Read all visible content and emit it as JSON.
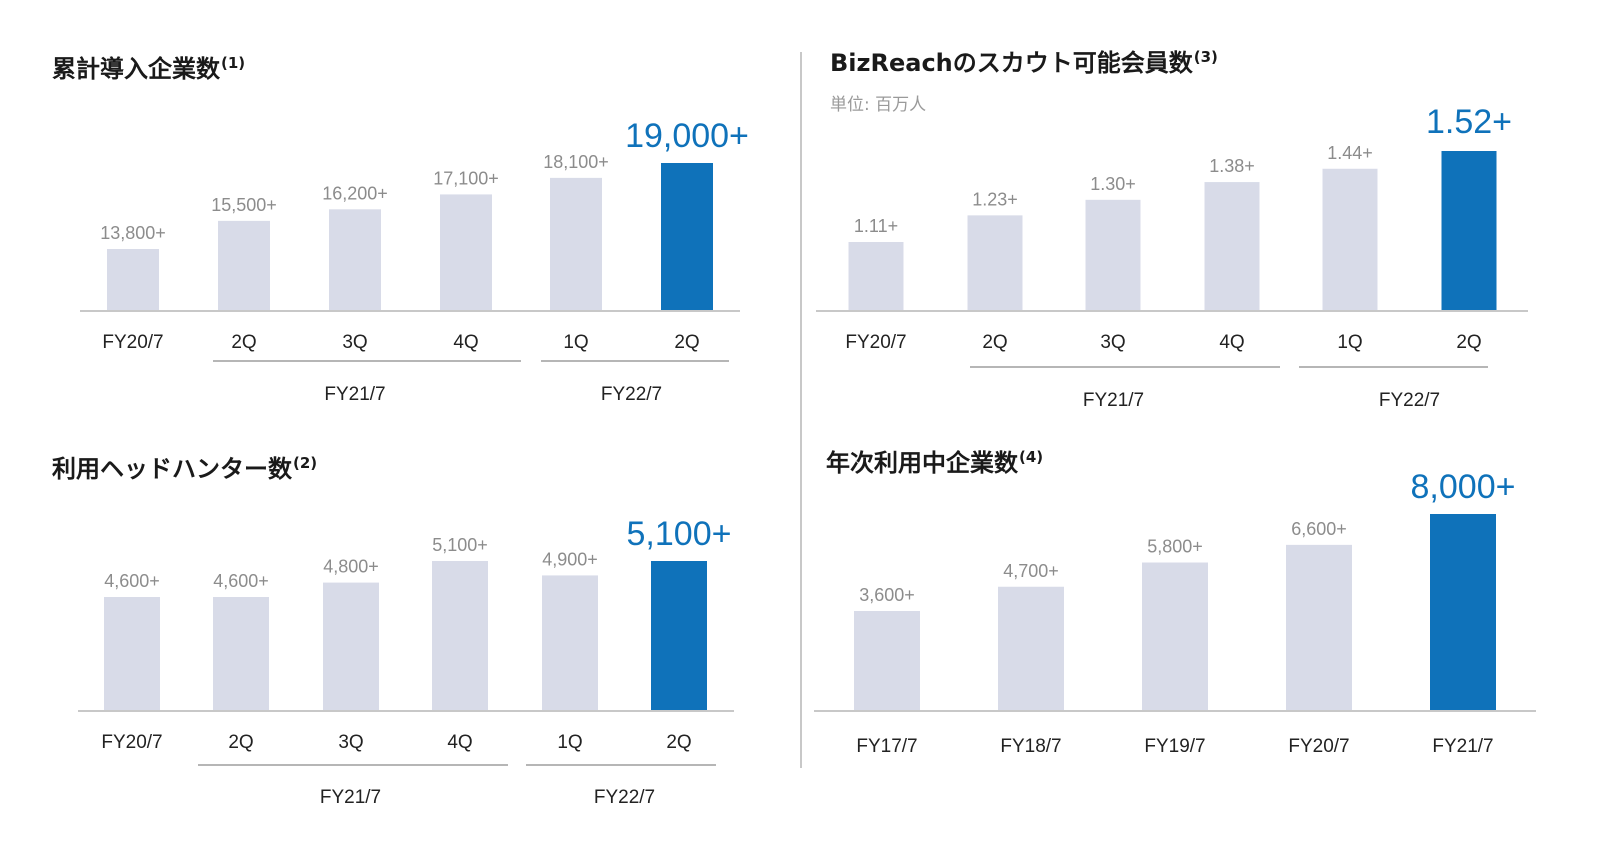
{
  "colors": {
    "bar_default": "#d8dbe8",
    "bar_highlight": "#0f72ba",
    "label_default": "#8c8c8c",
    "label_highlight": "#0f72ba",
    "axis": "#c8c8c8",
    "tick_text": "#222222"
  },
  "chart_data": [
    {
      "type": "bar",
      "title": "累計導入企業数",
      "note": "(1)",
      "subtitle": "",
      "categories": [
        "FY20/7",
        "2Q",
        "3Q",
        "4Q",
        "1Q",
        "2Q"
      ],
      "values": [
        13800,
        15500,
        16200,
        17100,
        18100,
        19000
      ],
      "labels": [
        "13,800+",
        "15,500+",
        "16,200+",
        "17,100+",
        "18,100+",
        "19,000+"
      ],
      "highlight_index": 5,
      "groups": [
        {
          "label": "FY21/7",
          "from": 1,
          "to": 3
        },
        {
          "label": "FY22/7",
          "from": 4,
          "to": 5
        }
      ]
    },
    {
      "type": "bar",
      "title": "BizReachのスカウト可能会員数",
      "note": "(3)",
      "subtitle": "単位: 百万人",
      "categories": [
        "FY20/7",
        "2Q",
        "3Q",
        "4Q",
        "1Q",
        "2Q"
      ],
      "values": [
        1.11,
        1.23,
        1.3,
        1.38,
        1.44,
        1.52
      ],
      "labels": [
        "1.11+",
        "1.23+",
        "1.30+",
        "1.38+",
        "1.44+",
        "1.52+"
      ],
      "highlight_index": 5,
      "groups": [
        {
          "label": "FY21/7",
          "from": 1,
          "to": 3
        },
        {
          "label": "FY22/7",
          "from": 4,
          "to": 5
        }
      ]
    },
    {
      "type": "bar",
      "title": "利用ヘッドハンター数",
      "note": "(2)",
      "subtitle": "",
      "categories": [
        "FY20/7",
        "2Q",
        "3Q",
        "4Q",
        "1Q",
        "2Q"
      ],
      "values": [
        4600,
        4600,
        4800,
        5100,
        4900,
        5100
      ],
      "labels": [
        "4,600+",
        "4,600+",
        "4,800+",
        "5,100+",
        "4,900+",
        "5,100+"
      ],
      "highlight_index": 5,
      "groups": [
        {
          "label": "FY21/7",
          "from": 1,
          "to": 3
        },
        {
          "label": "FY22/7",
          "from": 4,
          "to": 5
        }
      ]
    },
    {
      "type": "bar",
      "title": "年次利用中企業数",
      "note": "(4)",
      "subtitle": "",
      "categories": [
        "FY17/7",
        "FY18/7",
        "FY19/7",
        "FY20/7",
        "FY21/7"
      ],
      "values": [
        3600,
        4700,
        5800,
        6600,
        8000
      ],
      "labels": [
        "3,600+",
        "4,700+",
        "5,800+",
        "6,600+",
        "8,000+"
      ],
      "highlight_index": 4,
      "groups": []
    }
  ]
}
